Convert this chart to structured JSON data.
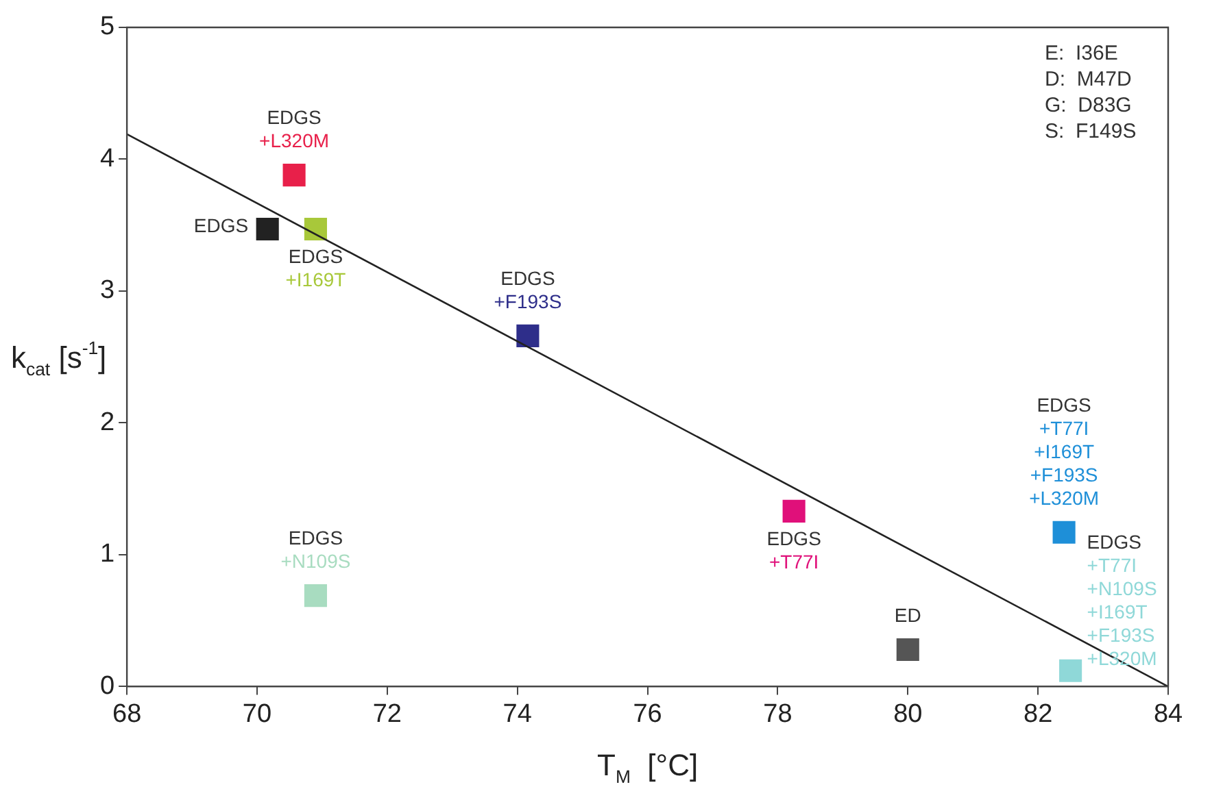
{
  "chart_data": {
    "type": "scatter",
    "xlabel": "T$_{M}$  [°C]",
    "ylabel": "k$_{cat}$ [s$^{-1}$]",
    "xlim": [
      68,
      84
    ],
    "xticks": [
      68,
      70,
      72,
      74,
      76,
      78,
      80,
      82,
      84
    ],
    "ylim": [
      0,
      5
    ],
    "yticks": [
      0,
      1,
      2,
      3,
      4,
      5
    ],
    "grid": false,
    "legend": false,
    "marker": "square",
    "series": [
      {
        "type": "line",
        "color": "#222222",
        "x": [
          68,
          84
        ],
        "values": [
          4.19,
          0.0
        ],
        "marker": "none"
      },
      {
        "x": [
          70.57,
          70.16,
          70.9,
          74.16,
          70.9,
          78.25,
          80.0,
          82.4,
          82.5
        ],
        "values": [
          3.88,
          3.47,
          3.47,
          2.66,
          0.69,
          1.33,
          0.28,
          1.17,
          0.12
        ],
        "colors": [
          "#e8204a",
          "#222222",
          "#a8c83a",
          "#2e2e8a",
          "#a8dcc0",
          "#e0107a",
          "#555555",
          "#1e8fd8",
          "#8fd8d8"
        ]
      }
    ],
    "annotations": [
      {
        "text": "EDGS\n+L320M",
        "x": 70.57,
        "y": 3.88
      },
      {
        "text": "EDGS",
        "x": 70.16,
        "y": 3.47
      },
      {
        "text": "EDGS\n+I169T",
        "x": 70.9,
        "y": 3.47
      },
      {
        "text": "EDGS\n+F193S",
        "x": 74.16,
        "y": 2.66
      },
      {
        "text": "EDGS\n+N109S",
        "x": 70.9,
        "y": 0.69
      },
      {
        "text": "EDGS\n+T77I",
        "x": 78.25,
        "y": 1.33
      },
      {
        "text": "ED",
        "x": 80.0,
        "y": 0.28
      },
      {
        "text": "EDGS\n+T77I\n+I169T\n+F193S\n+L320M",
        "x": 82.4,
        "y": 1.17
      },
      {
        "text": "EDGS\n+T77I\n+N109S\n+I169T\n+F193S\n+L320M",
        "x": 82.5,
        "y": 0.12
      },
      "E:  I36E\nD:  M47D\nG:  D83G\nS:  F149S"
    ]
  }
}
